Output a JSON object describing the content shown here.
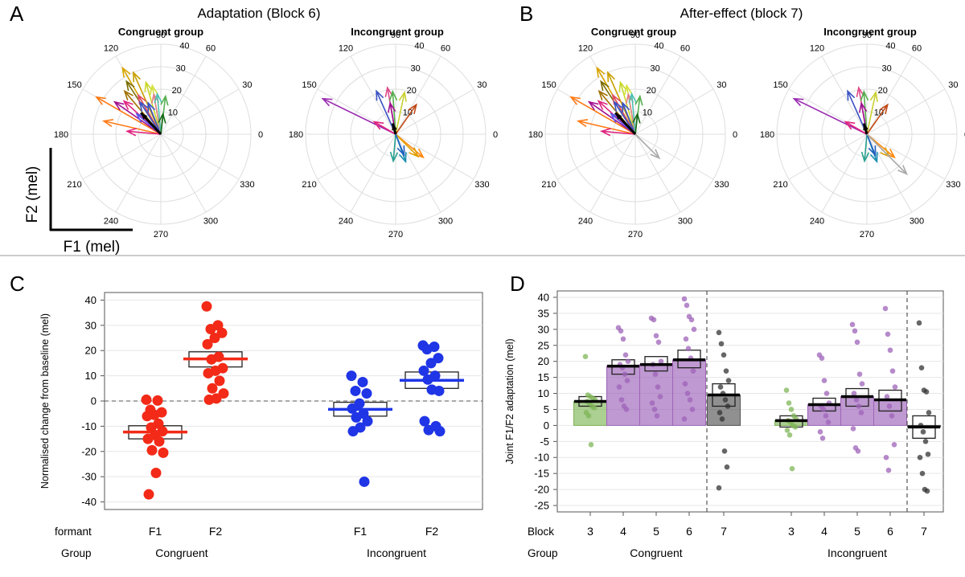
{
  "panels": {
    "A": {
      "letter": "A",
      "title": "Adaptation (Block 6)"
    },
    "B": {
      "letter": "B",
      "title": "After-effect (block 7)"
    },
    "C": {
      "letter": "C"
    },
    "D": {
      "letter": "D"
    }
  },
  "axes_legend": {
    "y_label": "F2 (mel)",
    "x_label": "F1 (mel)"
  },
  "colors": {
    "red": "#f22a17",
    "blue": "#1f35e6",
    "green": "#7fb557",
    "purple": "#9d63b8",
    "black": "#222222",
    "grid": "#dddddd",
    "grey": "#aaaaaa"
  },
  "chart_data": [
    {
      "id": "A-congruent",
      "type": "polar-vectors",
      "panel": "A",
      "title": "Congruent group",
      "angle_labels": [
        "90",
        "60",
        "30",
        "0",
        "330",
        "300",
        "270",
        "240",
        "210",
        "180",
        "150",
        "120"
      ],
      "radial_labels": [
        "10",
        "20",
        "30",
        "40"
      ],
      "rmax": 40,
      "vectors": [
        {
          "angle": 150,
          "r": 33,
          "color": "#ff7a16"
        },
        {
          "angle": 167,
          "r": 26,
          "color": "#ff7a16"
        },
        {
          "angle": 120,
          "r": 34,
          "color": "#d6a300"
        },
        {
          "angle": 114,
          "r": 30,
          "color": "#c8a000"
        },
        {
          "angle": 106,
          "r": 24,
          "color": "#c9d82a"
        },
        {
          "angle": 100,
          "r": 22,
          "color": "#d5e23a"
        },
        {
          "angle": 123,
          "r": 28,
          "color": "#7a6c00"
        },
        {
          "angle": 130,
          "r": 25,
          "color": "#a07000"
        },
        {
          "angle": 138,
          "r": 22,
          "color": "#e0257f"
        },
        {
          "angle": 145,
          "r": 25,
          "color": "#a01090"
        },
        {
          "angle": 175,
          "r": 15,
          "color": "#e0257f"
        },
        {
          "angle": 120,
          "r": 20,
          "color": "#e04a5e"
        },
        {
          "angle": 123,
          "r": 17,
          "color": "#3a52c4"
        },
        {
          "angle": 112,
          "r": 15,
          "color": "#3a52c4"
        },
        {
          "angle": 100,
          "r": 18,
          "color": "#e0808a"
        },
        {
          "angle": 95,
          "r": 18,
          "color": "#4bc1b0"
        },
        {
          "angle": 83,
          "r": 17,
          "color": "#55b050"
        },
        {
          "angle": 84,
          "r": 9,
          "color": "#1a6a1a"
        },
        {
          "angle": 140,
          "r": 14,
          "color": "#5a5af0"
        },
        {
          "angle": 133,
          "r": 13,
          "color": "#000000",
          "mean": true
        }
      ]
    },
    {
      "id": "A-incongruent",
      "type": "polar-vectors",
      "panel": "A",
      "title": "Incongruent group",
      "angle_labels": [
        "90",
        "60",
        "30",
        "0",
        "330",
        "300",
        "270",
        "240",
        "210",
        "180",
        "150",
        "120"
      ],
      "radial_labels": [
        "10",
        "20",
        "30",
        "40"
      ],
      "rmax": 40,
      "vectors": [
        {
          "angle": 154,
          "r": 36,
          "color": "#9a2bb0"
        },
        {
          "angle": 114,
          "r": 21,
          "color": "#3a52c4"
        },
        {
          "angle": 100,
          "r": 21,
          "color": "#e04a8a"
        },
        {
          "angle": 94,
          "r": 19,
          "color": "#55b050"
        },
        {
          "angle": 78,
          "r": 19,
          "color": "#c8d030"
        },
        {
          "angle": 55,
          "r": 16,
          "color": "#c04a18"
        },
        {
          "angle": 150,
          "r": 11,
          "color": "#e0257f"
        },
        {
          "angle": 100,
          "r": 14,
          "color": "#a01090"
        },
        {
          "angle": 320,
          "r": 16,
          "color": "#ff8a10"
        },
        {
          "angle": 315,
          "r": 14,
          "color": "#e0a000"
        },
        {
          "angle": 290,
          "r": 13,
          "color": "#1a8fb0"
        },
        {
          "angle": 265,
          "r": 12,
          "color": "#2aa090"
        },
        {
          "angle": 292,
          "r": 10,
          "color": "#2060c0"
        },
        {
          "angle": 105,
          "r": 5,
          "color": "#000000",
          "mean": true
        }
      ]
    },
    {
      "id": "B-congruent",
      "type": "polar-vectors",
      "panel": "B",
      "title": "Congruent group",
      "angle_labels": [
        "90",
        "60",
        "30",
        "0",
        "330",
        "300",
        "270",
        "240",
        "210",
        "180",
        "150",
        "120"
      ],
      "radial_labels": [
        "10",
        "20",
        "30",
        "40"
      ],
      "rmax": 40,
      "vectors": [
        {
          "angle": 150,
          "r": 33,
          "color": "#ff7a16"
        },
        {
          "angle": 167,
          "r": 26,
          "color": "#ff7a16"
        },
        {
          "angle": 120,
          "r": 34,
          "color": "#d6a300"
        },
        {
          "angle": 114,
          "r": 30,
          "color": "#c8a000"
        },
        {
          "angle": 106,
          "r": 24,
          "color": "#c9d82a"
        },
        {
          "angle": 100,
          "r": 22,
          "color": "#d5e23a"
        },
        {
          "angle": 123,
          "r": 28,
          "color": "#7a6c00"
        },
        {
          "angle": 130,
          "r": 25,
          "color": "#a07000"
        },
        {
          "angle": 138,
          "r": 22,
          "color": "#e0257f"
        },
        {
          "angle": 145,
          "r": 25,
          "color": "#a01090"
        },
        {
          "angle": 175,
          "r": 15,
          "color": "#e0257f"
        },
        {
          "angle": 120,
          "r": 20,
          "color": "#e04a5e"
        },
        {
          "angle": 123,
          "r": 17,
          "color": "#3a52c4"
        },
        {
          "angle": 112,
          "r": 15,
          "color": "#3a52c4"
        },
        {
          "angle": 100,
          "r": 18,
          "color": "#e0808a"
        },
        {
          "angle": 95,
          "r": 18,
          "color": "#4bc1b0"
        },
        {
          "angle": 83,
          "r": 17,
          "color": "#55b050"
        },
        {
          "angle": 84,
          "r": 9,
          "color": "#1a6a1a"
        },
        {
          "angle": 140,
          "r": 14,
          "color": "#5a5af0"
        },
        {
          "angle": 133,
          "r": 13,
          "color": "#000000",
          "mean": true
        },
        {
          "angle": 315,
          "r": 15,
          "color": "#aaaaaa"
        }
      ]
    },
    {
      "id": "B-incongruent",
      "type": "polar-vectors",
      "panel": "B",
      "title": "Incongruent group",
      "angle_labels": [
        "90",
        "60",
        "30",
        "0",
        "330",
        "300",
        "270",
        "240",
        "210",
        "180",
        "150",
        "120"
      ],
      "radial_labels": [
        "10",
        "20",
        "30",
        "40"
      ],
      "rmax": 40,
      "vectors": [
        {
          "angle": 154,
          "r": 36,
          "color": "#9a2bb0"
        },
        {
          "angle": 114,
          "r": 21,
          "color": "#3a52c4"
        },
        {
          "angle": 100,
          "r": 21,
          "color": "#e04a8a"
        },
        {
          "angle": 94,
          "r": 19,
          "color": "#55b050"
        },
        {
          "angle": 78,
          "r": 19,
          "color": "#c8d030"
        },
        {
          "angle": 55,
          "r": 16,
          "color": "#c04a18"
        },
        {
          "angle": 150,
          "r": 11,
          "color": "#e0257f"
        },
        {
          "angle": 100,
          "r": 14,
          "color": "#a01090"
        },
        {
          "angle": 320,
          "r": 16,
          "color": "#ff8a10"
        },
        {
          "angle": 315,
          "r": 14,
          "color": "#e0a000"
        },
        {
          "angle": 290,
          "r": 13,
          "color": "#1a8fb0"
        },
        {
          "angle": 265,
          "r": 12,
          "color": "#2aa090"
        },
        {
          "angle": 292,
          "r": 10,
          "color": "#2060c0"
        },
        {
          "angle": 105,
          "r": 5,
          "color": "#000000",
          "mean": true
        },
        {
          "angle": 315,
          "r": 25,
          "color": "#aaaaaa"
        }
      ]
    },
    {
      "id": "C",
      "type": "scatter",
      "panel": "C",
      "ylabel": "Normalised change from baseline (mel)",
      "ylim": [
        -43,
        43
      ],
      "yticks": [
        40,
        30,
        20,
        10,
        0,
        -10,
        -20,
        -30,
        -40
      ],
      "row_labels": {
        "formant": "formant",
        "group": "Group"
      },
      "groups": [
        "Congruent",
        "Incongruent"
      ],
      "categories": [
        {
          "formant": "F1",
          "group": "Congruent",
          "color": "#f22a17",
          "mean": -12.3,
          "ci": [
            -15,
            -9.8
          ],
          "points": [
            0.5,
            0.2,
            -3.5,
            -4.5,
            -5.5,
            -6,
            -9,
            -10.5,
            -12,
            -13.5,
            -15,
            -16,
            -19.5,
            -20.5,
            -28.5,
            -37
          ]
        },
        {
          "formant": "F2",
          "group": "Congruent",
          "color": "#f22a17",
          "mean": 16.7,
          "ci": [
            13.5,
            19.5
          ],
          "points": [
            37.5,
            30,
            28.5,
            27,
            25,
            22.5,
            17.5,
            16.5,
            13,
            12,
            11,
            8,
            5,
            3,
            1,
            0.5
          ]
        },
        {
          "formant": "F1",
          "group": "Incongruent",
          "color": "#1f35e6",
          "mean": -3.3,
          "ci": [
            -6,
            -0.5
          ],
          "points": [
            10,
            7.5,
            4,
            3,
            -1,
            -3,
            -5,
            -6.5,
            -8,
            -10.5,
            -12,
            -32
          ]
        },
        {
          "formant": "F2",
          "group": "Incongruent",
          "color": "#1f35e6",
          "mean": 8.2,
          "ci": [
            5,
            11.5
          ],
          "points": [
            22,
            21.5,
            20.5,
            17,
            15,
            12,
            10,
            8.5,
            4,
            4.5,
            -8,
            -10,
            -11.5,
            -12
          ]
        }
      ]
    },
    {
      "id": "D",
      "type": "bar",
      "panel": "D",
      "ylabel": "Joint F1/F2 adaptation (mel)",
      "ylim": [
        -27,
        42
      ],
      "yticks": [
        40,
        35,
        30,
        25,
        20,
        15,
        10,
        5,
        0,
        -5,
        -10,
        -15,
        -20,
        -25
      ],
      "row_labels": {
        "block": "Block",
        "group": "Group"
      },
      "groups": [
        "Congruent",
        "Incongruent"
      ],
      "bars": [
        {
          "group": "Congruent",
          "block": "3",
          "value": 7.5,
          "color": "#7fb557",
          "ci": [
            6,
            9
          ],
          "points": [
            21.5,
            9.5,
            9,
            8.5,
            8,
            7.5,
            7,
            6,
            5.5,
            4,
            3,
            -6
          ]
        },
        {
          "group": "Congruent",
          "block": "4",
          "value": 18.5,
          "color": "#9d63b8",
          "ci": [
            16,
            20.5
          ],
          "points": [
            30.5,
            29.5,
            27,
            22,
            20,
            19,
            18,
            16,
            14,
            12,
            8,
            6,
            5
          ]
        },
        {
          "group": "Congruent",
          "block": "5",
          "value": 19,
          "color": "#9d63b8",
          "ci": [
            17,
            21.5
          ],
          "points": [
            33.5,
            33,
            28,
            26,
            20,
            19,
            16,
            12,
            9,
            7,
            5,
            3
          ]
        },
        {
          "group": "Congruent",
          "block": "6",
          "value": 20.5,
          "color": "#9d63b8",
          "ci": [
            18,
            23.5
          ],
          "points": [
            39.5,
            37.5,
            34,
            33,
            30,
            27,
            24,
            21,
            17,
            13,
            10,
            8,
            5,
            2
          ]
        },
        {
          "group": "Congruent",
          "block": "7",
          "value": 9.5,
          "color": "#555555",
          "ci": [
            6,
            13
          ],
          "points": [
            29,
            25.5,
            22,
            17,
            14,
            12,
            10,
            8,
            6,
            4,
            2,
            -8,
            -13,
            -19.5
          ]
        },
        {
          "group": "Incongruent",
          "block": "3",
          "value": 1.5,
          "color": "#7fb557",
          "ci": [
            -0.5,
            3
          ],
          "points": [
            11,
            7,
            5,
            3,
            2,
            1.5,
            1,
            0,
            -0.5,
            -1.5,
            -3,
            -13.5
          ]
        },
        {
          "group": "Incongruent",
          "block": "4",
          "value": 6.5,
          "color": "#9d63b8",
          "ci": [
            4.5,
            8.5
          ],
          "points": [
            22,
            21,
            14,
            10,
            7,
            6,
            5,
            3,
            1,
            -2,
            -4
          ]
        },
        {
          "group": "Incongruent",
          "block": "5",
          "value": 9,
          "color": "#9d63b8",
          "ci": [
            6,
            11.5
          ],
          "points": [
            31.5,
            29.5,
            26,
            16,
            13,
            10,
            8,
            6,
            4,
            -1,
            -7,
            -8
          ]
        },
        {
          "group": "Incongruent",
          "block": "6",
          "value": 8,
          "color": "#9d63b8",
          "ci": [
            4.5,
            11
          ],
          "points": [
            36.5,
            28.5,
            23.5,
            17,
            12,
            9,
            6,
            3,
            -6,
            -10,
            -14
          ]
        },
        {
          "group": "Incongruent",
          "block": "7",
          "value": -0.5,
          "color": "#555555",
          "ci": [
            -4,
            3
          ],
          "points": [
            32,
            18,
            11,
            10.5,
            4,
            0,
            -2,
            -5,
            -9,
            -10,
            -15,
            -20,
            -20.5
          ]
        }
      ]
    }
  ]
}
